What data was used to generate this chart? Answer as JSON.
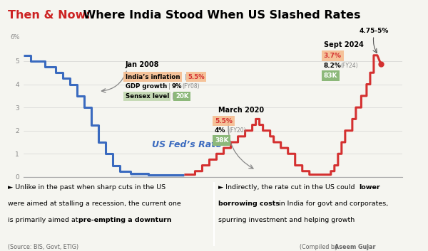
{
  "title_red": "Then & Now:",
  "title_black": " Where India Stood When US Slashed Rates",
  "background_color": "#f5f5f0",
  "chart_bg": "#f5f5f0",
  "line_color_blue": "#3a6abf",
  "line_color_red": "#d43030",
  "fed_rate_label": "US Fed’s Rate",
  "ylim": [
    0,
    6.5
  ],
  "yticks": [
    0,
    1,
    2,
    3,
    4,
    5
  ],
  "annotation_jan2008": "Jan 2008",
  "annotation_march2020": "March 2020",
  "annotation_sept2024": "Sept 2024",
  "annotation_rate_2024": "4.75-5%",
  "jan2008_inflation": "India’s inflation",
  "jan2008_inflation_val": "5.5%",
  "jan2008_gdp": "GDP growth",
  "jan2008_gdp_val": "9%",
  "jan2008_gdp_extra": "(FY08)",
  "jan2008_sensex": "Sensex level",
  "jan2008_sensex_val": "20K",
  "march2020_inflation_val": "5.5%",
  "march2020_gdp_val": "4%",
  "march2020_gdp_extra": "(FY20)",
  "march2020_sensex_val": "38K",
  "sept2024_inflation_val": "3.7%",
  "sept2024_gdp_val": "8.2%",
  "sept2024_gdp_extra": "(FY24)",
  "sept2024_sensex_val": "83K",
  "orange_color": "#f5b98a",
  "green_color": "#8cb87a",
  "green_color_light": "#a8c890",
  "source_text": "(Source: BIS, Govt, ETIG)",
  "compiled_text": "(Compiled by ",
  "compiled_name": "Aseem Gujar",
  "compiled_end": ")",
  "top_border_color": "#cc2222",
  "bottom_bg_color": "#ddddd8",
  "divider_color": "#bbbbbb"
}
